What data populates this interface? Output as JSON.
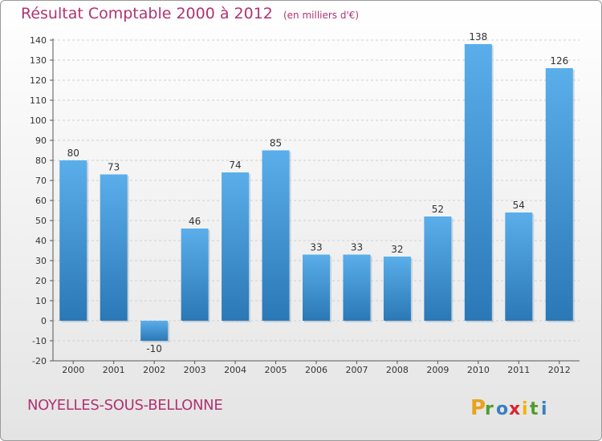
{
  "title": "Résultat Comptable 2000 à 2012",
  "subtitle": "(en milliers d'€)",
  "town": "NOYELLES-SOUS-BELLONNE",
  "logo": {
    "letters": [
      "P",
      "r",
      "o",
      "x",
      "i",
      "t",
      "i"
    ],
    "colors": [
      "#e8a21c",
      "#4f9d2d",
      "#3a7fc1",
      "#d8262f",
      "#f0b400",
      "#4f9d2d",
      "#3a7fc1"
    ]
  },
  "colors": {
    "bar_top": "#5aaeea",
    "bar_bottom": "#2b78b6",
    "title": "#b03372"
  },
  "chart_data": {
    "type": "bar",
    "categories": [
      "2000",
      "2001",
      "2002",
      "2003",
      "2004",
      "2005",
      "2006",
      "2007",
      "2008",
      "2009",
      "2010",
      "2011",
      "2012"
    ],
    "values": [
      80,
      73,
      -10,
      46,
      74,
      85,
      33,
      33,
      32,
      52,
      138,
      54,
      126
    ],
    "ylim": [
      -20,
      140
    ],
    "yticks": [
      -20,
      -10,
      0,
      10,
      20,
      30,
      40,
      50,
      60,
      70,
      80,
      90,
      100,
      110,
      120,
      130,
      140
    ],
    "grid": true,
    "title": "Résultat Comptable 2000 à 2012",
    "subtitle": "(en milliers d'€)",
    "xlabel": "",
    "ylabel": ""
  }
}
